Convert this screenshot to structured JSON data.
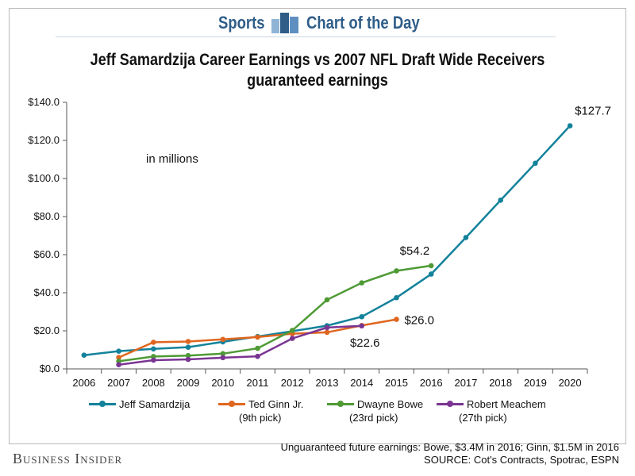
{
  "header": {
    "brand_left": "Sports",
    "brand_right": "Chart of the Day",
    "icon": "bar-chart-icon",
    "accent_color": "#2f5d88"
  },
  "chart_data": {
    "type": "line",
    "title": "Jeff Samardzija Career Earnings vs 2007 NFL Draft Wide Receivers",
    "subtitle": "guaranteed earnings",
    "annotation_units": "in millions",
    "xlabel": "",
    "ylabel": "",
    "x_categories": [
      "2006",
      "2007",
      "2008",
      "2009",
      "2010",
      "2011",
      "2012",
      "2013",
      "2014",
      "2015",
      "2016",
      "2017",
      "2018",
      "2019",
      "2020"
    ],
    "ylim": [
      0,
      140
    ],
    "y_ticks": [
      "$0.0",
      "$20.0",
      "$40.0",
      "$60.0",
      "$80.0",
      "$100.0",
      "$120.0",
      "$140.0"
    ],
    "y_tick_values": [
      0,
      20,
      40,
      60,
      80,
      100,
      120,
      140
    ],
    "grid": false,
    "legend_position": "bottom",
    "series": [
      {
        "name": "Jeff Samardzija",
        "sub": "",
        "color": "#13829b",
        "x": [
          "2006",
          "2007",
          "2008",
          "2009",
          "2010",
          "2011",
          "2012",
          "2013",
          "2014",
          "2015",
          "2016",
          "2017",
          "2018",
          "2019",
          "2020"
        ],
        "values": [
          7.2,
          9.3,
          10.5,
          11.4,
          14.2,
          17.0,
          19.8,
          22.7,
          27.4,
          37.4,
          49.8,
          69.0,
          88.6,
          108.0,
          127.7
        ]
      },
      {
        "name": "Ted Ginn Jr.",
        "sub": "(9th pick)",
        "color": "#e0661f",
        "x": [
          "2007",
          "2008",
          "2009",
          "2010",
          "2011",
          "2012",
          "2013",
          "2014",
          "2015"
        ],
        "values": [
          6.0,
          14.0,
          14.4,
          15.5,
          16.7,
          18.5,
          19.2,
          22.8,
          26.0
        ]
      },
      {
        "name": "Dwayne Bowe",
        "sub": "(23rd pick)",
        "color": "#4e9a35",
        "x": [
          "2007",
          "2008",
          "2009",
          "2010",
          "2011",
          "2012",
          "2013",
          "2014",
          "2015",
          "2016"
        ],
        "values": [
          4.0,
          6.5,
          7.0,
          8.0,
          10.8,
          20.2,
          36.3,
          45.2,
          51.5,
          54.2
        ]
      },
      {
        "name": "Robert Meachem",
        "sub": "(27th pick)",
        "color": "#7a3593",
        "x": [
          "2007",
          "2008",
          "2009",
          "2010",
          "2011",
          "2012",
          "2013",
          "2014"
        ],
        "values": [
          2.2,
          4.6,
          5.0,
          5.9,
          6.6,
          16.0,
          21.7,
          22.6
        ]
      }
    ],
    "data_labels": [
      {
        "text": "$127.7",
        "series": 0,
        "x": "2020"
      },
      {
        "text": "$54.2",
        "series": 2,
        "x": "2016"
      },
      {
        "text": "$26.0",
        "series": 1,
        "x": "2015"
      },
      {
        "text": "$22.6",
        "series": 3,
        "x": "2014"
      }
    ]
  },
  "footer": {
    "note": "Unguaranteed future earnings: Bowe, $3.4M in 2016; Ginn, $1.5M in 2016",
    "source": "SOURCE: Cot's Contracts, Spotrac, ESPN",
    "logo_text": "Business Insider"
  }
}
